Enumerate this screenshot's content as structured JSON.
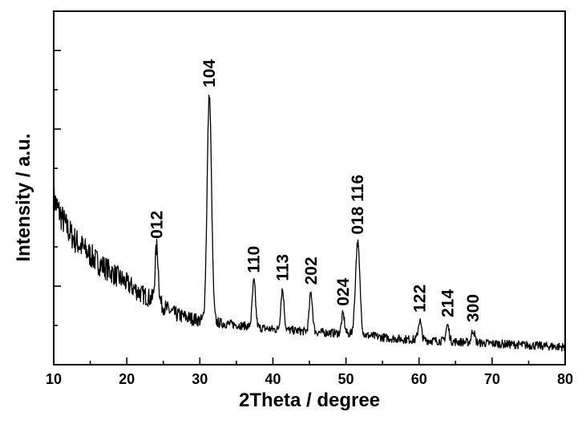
{
  "chart_data": {
    "type": "line",
    "title": "",
    "xlabel": "2Theta / degree",
    "ylabel": "Intensity / a.u.",
    "xlim": [
      10,
      80
    ],
    "ylim": [
      0,
      100
    ],
    "x_ticks": [
      10,
      20,
      30,
      40,
      50,
      60,
      70,
      80
    ],
    "x_tick_labels": [
      "10",
      "20",
      "30",
      "40",
      "50",
      "60",
      "70",
      "80"
    ],
    "y_tick_labels_shown": false,
    "grid": false,
    "line_color": "#000000",
    "background": [
      [
        10,
        47
      ],
      [
        11,
        42
      ],
      [
        12,
        38
      ],
      [
        13,
        35
      ],
      [
        14,
        33
      ],
      [
        15,
        31
      ],
      [
        16,
        29
      ],
      [
        17,
        27.5
      ],
      [
        18,
        26
      ],
      [
        19,
        24.5
      ],
      [
        20,
        23
      ],
      [
        21,
        21.5
      ],
      [
        22,
        20
      ],
      [
        23,
        19
      ],
      [
        24,
        18
      ],
      [
        25,
        16.5
      ],
      [
        26,
        15
      ],
      [
        27,
        14
      ],
      [
        28,
        13.5
      ],
      [
        29,
        13
      ],
      [
        30,
        12.5
      ],
      [
        32,
        12
      ],
      [
        34,
        11.5
      ],
      [
        36,
        11
      ],
      [
        38,
        10.5
      ],
      [
        40,
        10
      ],
      [
        42,
        9.8
      ],
      [
        44,
        9.5
      ],
      [
        46,
        9.2
      ],
      [
        48,
        9
      ],
      [
        50,
        8.8
      ],
      [
        52,
        8.5
      ],
      [
        54,
        8
      ],
      [
        56,
        7.5
      ],
      [
        58,
        7.2
      ],
      [
        60,
        7
      ],
      [
        62,
        6.8
      ],
      [
        64,
        6.6
      ],
      [
        66,
        6.4
      ],
      [
        68,
        6.2
      ],
      [
        70,
        6
      ],
      [
        72,
        5.8
      ],
      [
        74,
        5.6
      ],
      [
        76,
        5.4
      ],
      [
        78,
        5.2
      ],
      [
        80,
        5
      ]
    ],
    "peaks": [
      {
        "label": "012",
        "x": 24.1,
        "height": 15.5,
        "width": 0.22
      },
      {
        "label": "104",
        "x": 31.3,
        "height": 64,
        "width": 0.3
      },
      {
        "label": "110",
        "x": 37.4,
        "height": 13,
        "width": 0.22
      },
      {
        "label": "113",
        "x": 41.3,
        "height": 11.5,
        "width": 0.22
      },
      {
        "label": "202",
        "x": 45.2,
        "height": 11,
        "width": 0.22
      },
      {
        "label": "024",
        "x": 49.6,
        "height": 5.5,
        "width": 0.2
      },
      {
        "label": "018 116",
        "x": 51.6,
        "height": 26,
        "width": 0.3
      },
      {
        "label": "122",
        "x": 60.1,
        "height": 5.5,
        "width": 0.22
      },
      {
        "label": "214",
        "x": 63.9,
        "height": 4.5,
        "width": 0.22
      },
      {
        "label": "300",
        "x": 67.4,
        "height": 3.5,
        "width": 0.22
      }
    ]
  }
}
